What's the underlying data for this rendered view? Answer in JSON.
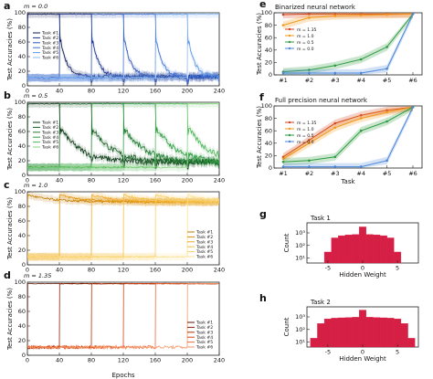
{
  "figure": {
    "x_axis_label": "Epochs",
    "panels": [
      {
        "letter": "a",
        "note": "m = 0.0",
        "ylabel": "Test Accuracies (%)",
        "yticks": [
          "0",
          "20",
          "40",
          "60",
          "80",
          "100"
        ],
        "xticks": [
          "0",
          "40",
          "80",
          "120",
          "160",
          "200",
          "240"
        ],
        "palette": [
          "#0b1a5a",
          "#1a2f8a",
          "#2b52b8",
          "#3d70d6",
          "#5a95e8",
          "#8bb8f2"
        ],
        "legend": [
          "Task #1",
          "Task #2",
          "Task #3",
          "Task #4",
          "Task #5",
          "Task #6"
        ],
        "style": "decay"
      },
      {
        "letter": "b",
        "note": "m = 0.5",
        "ylabel": "Test Accuracies (%)",
        "yticks": [
          "0",
          "20",
          "40",
          "60",
          "80",
          "100"
        ],
        "xticks": [
          "0",
          "40",
          "80",
          "120",
          "160",
          "200",
          "240"
        ],
        "palette": [
          "#0a3b14",
          "#155d22",
          "#1f7d30",
          "#2e9b40",
          "#4fb85a",
          "#86d27f"
        ],
        "legend": [
          "Task #1",
          "Task #2",
          "Task #3",
          "Task #4",
          "Task #5",
          "Task #6"
        ],
        "style": "slowdecay"
      },
      {
        "letter": "c",
        "note": "m = 1.0",
        "ylabel": "Test Accuracies (%)",
        "yticks": [
          "0",
          "20",
          "40",
          "60",
          "80",
          "100"
        ],
        "xticks": [
          "0",
          "40",
          "80",
          "120",
          "160",
          "200",
          "240"
        ],
        "palette": [
          "#c27a00",
          "#e09000",
          "#f0a820",
          "#f7bf3f",
          "#f9cf62",
          "#fbe08f"
        ],
        "legend": [
          "Task #1",
          "Task #2",
          "Task #3",
          "Task #4",
          "Task #5",
          "Task #6"
        ],
        "style": "steadyhigh"
      },
      {
        "letter": "d",
        "note": "m = 1.35",
        "ylabel": "Test Accuracies (%)",
        "yticks": [
          "0",
          "20",
          "40",
          "60",
          "80",
          "100"
        ],
        "xticks": [
          "0",
          "40",
          "80",
          "120",
          "160",
          "200",
          "240"
        ],
        "palette": [
          "#5e1300",
          "#8a2200",
          "#b33000",
          "#d84315",
          "#ee6a35",
          "#f59a6c"
        ],
        "legend": [
          "Task #1",
          "Task #2",
          "Task #3",
          "Task #4",
          "Task #5",
          "Task #6"
        ],
        "style": "nolearn"
      }
    ],
    "panel_e": {
      "letter": "e",
      "title": "Binarized neural network",
      "ylabel": "Test Accuracies (%)"
    },
    "panel_f": {
      "letter": "f",
      "title": "Full precision neural network",
      "ylabel": "Test Accuracies (%)",
      "xlabel": "Task"
    },
    "panel_g": {
      "letter": "g",
      "title": "Task 1",
      "ylabel": "Count",
      "xlabel": "Hidden Weight"
    },
    "panel_h": {
      "letter": "h",
      "title": "Task 2",
      "ylabel": "Count",
      "xlabel": "Hidden Weight"
    },
    "task_ticks": [
      "#1",
      "#2",
      "#3",
      "#4",
      "#5",
      "#6"
    ],
    "ef_yticks": [
      "0",
      "20",
      "40",
      "60",
      "80",
      "100"
    ],
    "hist_xticks": [
      "-5",
      "0",
      "5"
    ],
    "hist_yticks": [
      "10¹",
      "10²",
      "10³"
    ],
    "ef_legend": [
      {
        "label": "m = 1.35",
        "color": "#d2421c"
      },
      {
        "label": "m = 1.0",
        "color": "#f29a1c"
      },
      {
        "label": "m = 0.5",
        "color": "#2e9b40"
      },
      {
        "label": "m = 0.0",
        "color": "#4a86d8"
      }
    ],
    "hist_color": "#d61f45"
  },
  "chart_data": [
    {
      "panel": "a",
      "type": "line",
      "x": [
        0,
        40,
        80,
        120,
        160,
        200,
        240
      ],
      "ylim": [
        0,
        100
      ],
      "xlim": [
        0,
        240
      ],
      "note": "m = 0.0",
      "series": [
        {
          "name": "Task #1",
          "values": [
            98,
            30,
            15,
            12,
            10,
            10,
            10
          ]
        },
        {
          "name": "Task #2",
          "values": [
            null,
            98,
            30,
            15,
            12,
            10,
            10
          ]
        },
        {
          "name": "Task #3",
          "values": [
            null,
            null,
            98,
            30,
            15,
            12,
            10
          ]
        },
        {
          "name": "Task #4",
          "values": [
            null,
            null,
            null,
            98,
            30,
            15,
            12
          ]
        },
        {
          "name": "Task #5",
          "values": [
            null,
            null,
            null,
            null,
            98,
            30,
            15
          ]
        },
        {
          "name": "Task #6",
          "values": [
            null,
            null,
            null,
            null,
            null,
            98,
            30
          ]
        }
      ]
    },
    {
      "panel": "b",
      "type": "line",
      "x": [
        0,
        40,
        80,
        120,
        160,
        200,
        240
      ],
      "ylim": [
        0,
        100
      ],
      "xlim": [
        0,
        240
      ],
      "note": "m = 0.5",
      "series": [
        {
          "name": "Task #1",
          "values": [
            98,
            55,
            40,
            30,
            25,
            22,
            20
          ]
        },
        {
          "name": "Task #2",
          "values": [
            null,
            98,
            55,
            40,
            32,
            27,
            24
          ]
        },
        {
          "name": "Task #3",
          "values": [
            null,
            null,
            98,
            55,
            40,
            33,
            28
          ]
        },
        {
          "name": "Task #4",
          "values": [
            null,
            null,
            null,
            98,
            55,
            42,
            35
          ]
        },
        {
          "name": "Task #5",
          "values": [
            null,
            null,
            null,
            null,
            98,
            58,
            45
          ]
        },
        {
          "name": "Task #6",
          "values": [
            null,
            null,
            null,
            null,
            null,
            98,
            60
          ]
        }
      ]
    },
    {
      "panel": "c",
      "type": "line",
      "x": [
        0,
        40,
        80,
        120,
        160,
        200,
        240
      ],
      "ylim": [
        0,
        100
      ],
      "xlim": [
        0,
        240
      ],
      "note": "m = 1.0",
      "series": [
        {
          "name": "Task #1",
          "values": [
            96,
            92,
            90,
            89,
            88,
            88,
            88
          ]
        },
        {
          "name": "Task #2",
          "values": [
            10,
            96,
            90,
            88,
            88,
            87,
            87
          ]
        },
        {
          "name": "Task #3",
          "values": [
            10,
            10,
            95,
            88,
            87,
            86,
            86
          ]
        },
        {
          "name": "Task #4",
          "values": [
            10,
            10,
            10,
            95,
            88,
            86,
            85
          ]
        },
        {
          "name": "Task #5",
          "values": [
            10,
            10,
            10,
            10,
            95,
            87,
            85
          ]
        },
        {
          "name": "Task #6",
          "values": [
            10,
            10,
            10,
            10,
            10,
            95,
            90
          ]
        }
      ]
    },
    {
      "panel": "d",
      "type": "line",
      "x": [
        0,
        40,
        80,
        120,
        160,
        200,
        240
      ],
      "ylim": [
        0,
        100
      ],
      "xlim": [
        0,
        240
      ],
      "note": "m = 1.35",
      "series": [
        {
          "name": "Task #1",
          "values": [
            98,
            98,
            98,
            98,
            98,
            98,
            98
          ]
        },
        {
          "name": "Task #2",
          "values": [
            10,
            98,
            98,
            98,
            98,
            98,
            98
          ]
        },
        {
          "name": "Task #3",
          "values": [
            10,
            10,
            98,
            98,
            98,
            98,
            98
          ]
        },
        {
          "name": "Task #4",
          "values": [
            10,
            10,
            10,
            98,
            98,
            98,
            98
          ]
        },
        {
          "name": "Task #5",
          "values": [
            10,
            10,
            10,
            10,
            98,
            98,
            98
          ]
        },
        {
          "name": "Task #6",
          "values": [
            10,
            10,
            10,
            10,
            10,
            98,
            98
          ]
        }
      ]
    },
    {
      "panel": "e",
      "type": "line",
      "title": "Binarized neural network",
      "categories": [
        "#1",
        "#2",
        "#3",
        "#4",
        "#5",
        "#6"
      ],
      "ylim": [
        0,
        100
      ],
      "series": [
        {
          "name": "m = 1.35",
          "values": [
            97,
            98,
            98,
            98,
            98,
            98
          ]
        },
        {
          "name": "m = 1.0",
          "values": [
            80,
            92,
            95,
            96,
            97,
            98
          ]
        },
        {
          "name": "m = 0.5",
          "values": [
            5,
            8,
            15,
            25,
            45,
            98
          ]
        },
        {
          "name": "m = 0.0",
          "values": [
            3,
            3,
            3,
            3,
            10,
            98
          ]
        }
      ]
    },
    {
      "panel": "f",
      "type": "line",
      "title": "Full precision neural network",
      "categories": [
        "#1",
        "#2",
        "#3",
        "#4",
        "#5",
        "#6"
      ],
      "ylim": [
        0,
        100
      ],
      "xlabel": "Task",
      "series": [
        {
          "name": "m = 1.35",
          "values": [
            18,
            45,
            72,
            85,
            93,
            98
          ]
        },
        {
          "name": "m = 1.0",
          "values": [
            15,
            40,
            65,
            80,
            90,
            98
          ]
        },
        {
          "name": "m = 0.5",
          "values": [
            10,
            12,
            18,
            60,
            75,
            98
          ]
        },
        {
          "name": "m = 0.0",
          "values": [
            2,
            2,
            2,
            2,
            12,
            98
          ]
        }
      ]
    },
    {
      "panel": "g",
      "type": "bar",
      "title": "Task 1",
      "xlabel": "Hidden Weight",
      "ylabel": "Count",
      "ylog": true,
      "x": [
        -5,
        -4,
        -3,
        -2,
        -1,
        0,
        1,
        2,
        3,
        4,
        5
      ],
      "values": [
        30,
        400,
        600,
        700,
        750,
        3000,
        750,
        700,
        600,
        400,
        30
      ]
    },
    {
      "panel": "h",
      "type": "bar",
      "title": "Task 2",
      "xlabel": "Hidden Weight",
      "ylabel": "Count",
      "ylog": true,
      "x": [
        -7,
        -6,
        -5,
        -4,
        -3,
        -2,
        -1,
        0,
        1,
        2,
        3,
        4,
        5,
        6,
        7
      ],
      "values": [
        20,
        300,
        700,
        800,
        850,
        900,
        950,
        3500,
        950,
        900,
        850,
        800,
        700,
        300,
        20
      ]
    }
  ]
}
